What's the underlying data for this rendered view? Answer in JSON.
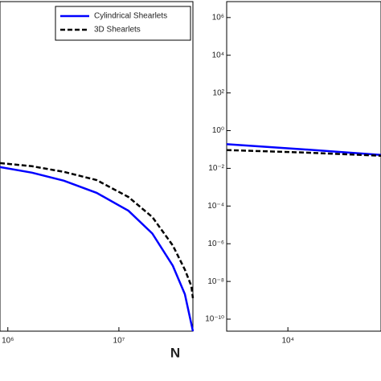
{
  "chart_data": [
    {
      "type": "line",
      "xlabel": "N",
      "xscale": "log",
      "yscale": "log",
      "xlim": [
        850000,
        46400000
      ],
      "ylim": [
        2.3e-11,
        7000000.0
      ],
      "xticks": [
        {
          "value": 1000000,
          "label": "10⁶"
        },
        {
          "value": 10000000,
          "label": "10⁷"
        }
      ],
      "legend": "upper right",
      "series": [
        {
          "name": "Cylindrical Shearlets",
          "color": "#0000ff",
          "style": "solid",
          "x": [
            850000,
            1650000,
            3200000,
            6300000,
            12200000,
            20000000,
            30600000,
            39300000,
            46400000
          ],
          "values": [
            0.0117,
            0.0059,
            0.0022,
            0.0005,
            5.6e-05,
            3.5e-06,
            6.8e-08,
            2.1e-09,
            2.3e-11
          ]
        },
        {
          "name": "3D Shearlets",
          "color": "#000000",
          "style": "dash",
          "x": [
            850000,
            1650000,
            3200000,
            6300000,
            12200000,
            20000000,
            30600000,
            39300000,
            44900000,
            46400000
          ],
          "values": [
            0.019,
            0.013,
            0.0065,
            0.0024,
            0.0003,
            2.6e-05,
            8.1e-07,
            4.2e-08,
            5.8e-09,
            1.3e-09
          ]
        }
      ]
    },
    {
      "type": "line",
      "xscale": "log",
      "yscale": "log",
      "xlim": [
        2200,
        100000
      ],
      "ylim": [
        2.3e-11,
        7000000.0
      ],
      "xticks": [
        {
          "value": 10000,
          "label": "10⁴"
        }
      ],
      "yticks": [
        {
          "value": 1000000.0,
          "label": "10⁶"
        },
        {
          "value": 10000.0,
          "label": "10⁴"
        },
        {
          "value": 100,
          "label": "10²"
        },
        {
          "value": 1,
          "label": "10⁰"
        },
        {
          "value": 0.01,
          "label": "10⁻²"
        },
        {
          "value": 0.0001,
          "label": "10⁻⁴"
        },
        {
          "value": 1e-06,
          "label": "10⁻⁶"
        },
        {
          "value": 1e-08,
          "label": "10⁻⁸"
        },
        {
          "value": 1e-10,
          "label": "10⁻¹⁰"
        }
      ],
      "series": [
        {
          "color": "#0000ff",
          "style": "solid",
          "x": [
            2200,
            15500,
            100000
          ],
          "values": [
            0.19,
            0.1,
            0.051
          ]
        },
        {
          "color": "#000000",
          "style": "dash",
          "x": [
            2200,
            15500,
            100000
          ],
          "values": [
            0.093,
            0.069,
            0.047
          ]
        }
      ]
    }
  ]
}
